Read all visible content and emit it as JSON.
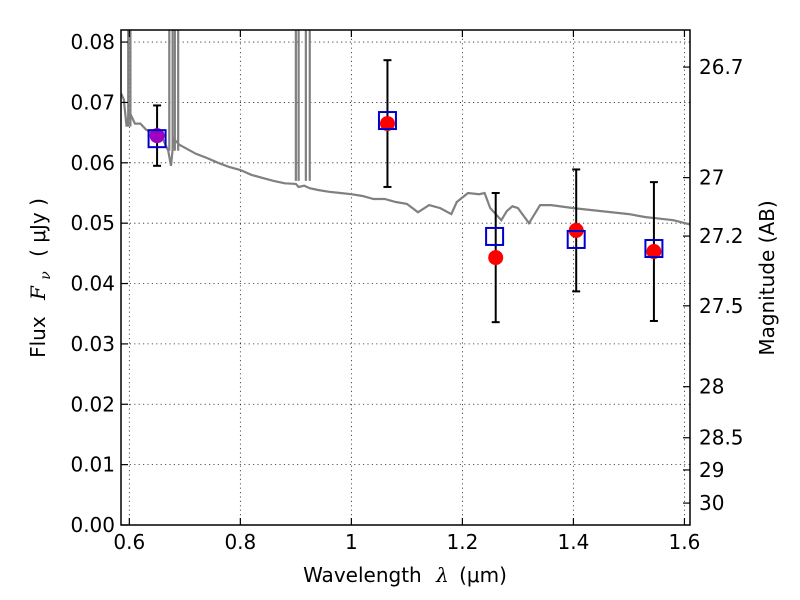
{
  "chart_data": {
    "type": "scatter",
    "xlabel_prefix": "Wavelength",
    "xlabel_symbol": "λ",
    "xlabel_unit": "(μm)",
    "ylabel_prefix": "Flux",
    "ylabel_symbol": "F",
    "ylabel_subscript": "ν",
    "ylabel_unit": "( μJy )",
    "y2label": "Magnitude (AB)",
    "xlim": [
      0.585,
      1.61
    ],
    "ylim": [
      0.0,
      0.082
    ],
    "grid": true,
    "x_ticks": [
      0.6,
      0.8,
      1.0,
      1.2,
      1.4,
      1.6
    ],
    "x_tick_labels": [
      "0.6",
      "0.8",
      "1",
      "1.2",
      "1.4",
      "1.6"
    ],
    "y_ticks": [
      0.0,
      0.01,
      0.02,
      0.03,
      0.04,
      0.05,
      0.06,
      0.07,
      0.08
    ],
    "y_tick_labels": [
      "0.00",
      "0.01",
      "0.02",
      "0.03",
      "0.04",
      "0.05",
      "0.06",
      "0.07",
      "0.08"
    ],
    "mag_ticks": [
      26.7,
      27,
      27.2,
      27.5,
      28,
      28.5,
      29,
      30
    ],
    "mag_tick_labels": [
      "26.7",
      "27",
      "27.2",
      "27.5",
      "28",
      "28.5",
      "29",
      "30"
    ],
    "colors": {
      "model": "#808080",
      "observed": "#ff0000",
      "synthetic": "#0000cc",
      "overlap": "#a000c0",
      "errorbar": "#000000"
    },
    "series": [
      {
        "name": "model-spectrum",
        "kind": "line",
        "x": [
          0.585,
          0.59,
          0.595,
          0.6,
          0.61,
          0.62,
          0.63,
          0.64,
          0.65,
          0.66,
          0.665,
          0.67,
          0.675,
          0.68,
          0.685,
          0.69,
          0.7,
          0.72,
          0.74,
          0.76,
          0.78,
          0.8,
          0.82,
          0.84,
          0.86,
          0.88,
          0.9,
          0.905,
          0.915,
          0.925,
          0.94,
          0.96,
          0.98,
          1.0,
          1.02,
          1.04,
          1.06,
          1.08,
          1.1,
          1.12,
          1.14,
          1.16,
          1.18,
          1.19,
          1.21,
          1.23,
          1.24,
          1.25,
          1.27,
          1.28,
          1.29,
          1.3,
          1.32,
          1.34,
          1.36,
          1.4,
          1.45,
          1.5,
          1.53,
          1.55,
          1.58,
          1.61
        ],
        "y": [
          0.0715,
          0.0705,
          0.066,
          0.0685,
          0.0665,
          0.0665,
          0.0655,
          0.065,
          0.0645,
          0.064,
          0.063,
          0.062,
          0.0595,
          0.064,
          0.0635,
          0.063,
          0.0625,
          0.0615,
          0.0608,
          0.06,
          0.0593,
          0.0588,
          0.058,
          0.0575,
          0.057,
          0.0566,
          0.0565,
          0.056,
          0.0562,
          0.0558,
          0.0555,
          0.0552,
          0.055,
          0.0548,
          0.0545,
          0.054,
          0.054,
          0.0535,
          0.0532,
          0.0518,
          0.053,
          0.0525,
          0.0515,
          0.0535,
          0.055,
          0.0548,
          0.055,
          0.0525,
          0.0505,
          0.052,
          0.0528,
          0.0525,
          0.05,
          0.053,
          0.053,
          0.0525,
          0.052,
          0.0515,
          0.051,
          0.0508,
          0.0505,
          0.0498
        ]
      },
      {
        "name": "model-spikes",
        "kind": "spikes",
        "x": [
          0.598,
          0.602,
          0.672,
          0.678,
          0.682,
          0.688,
          0.9,
          0.905,
          0.918,
          0.925
        ]
      },
      {
        "name": "observed",
        "kind": "points",
        "marker": "circle",
        "x": [
          0.65,
          1.065,
          1.26,
          1.405,
          1.545
        ],
        "y": [
          0.0645,
          0.0665,
          0.0443,
          0.0488,
          0.0453
        ],
        "yerr": [
          0.005,
          0.0105,
          0.0107,
          0.0101,
          0.0115
        ]
      },
      {
        "name": "synthetic",
        "kind": "points",
        "marker": "square",
        "x": [
          0.65,
          1.065,
          1.258,
          1.405,
          1.545
        ],
        "y": [
          0.064,
          0.067,
          0.0478,
          0.0473,
          0.0458
        ]
      }
    ]
  }
}
